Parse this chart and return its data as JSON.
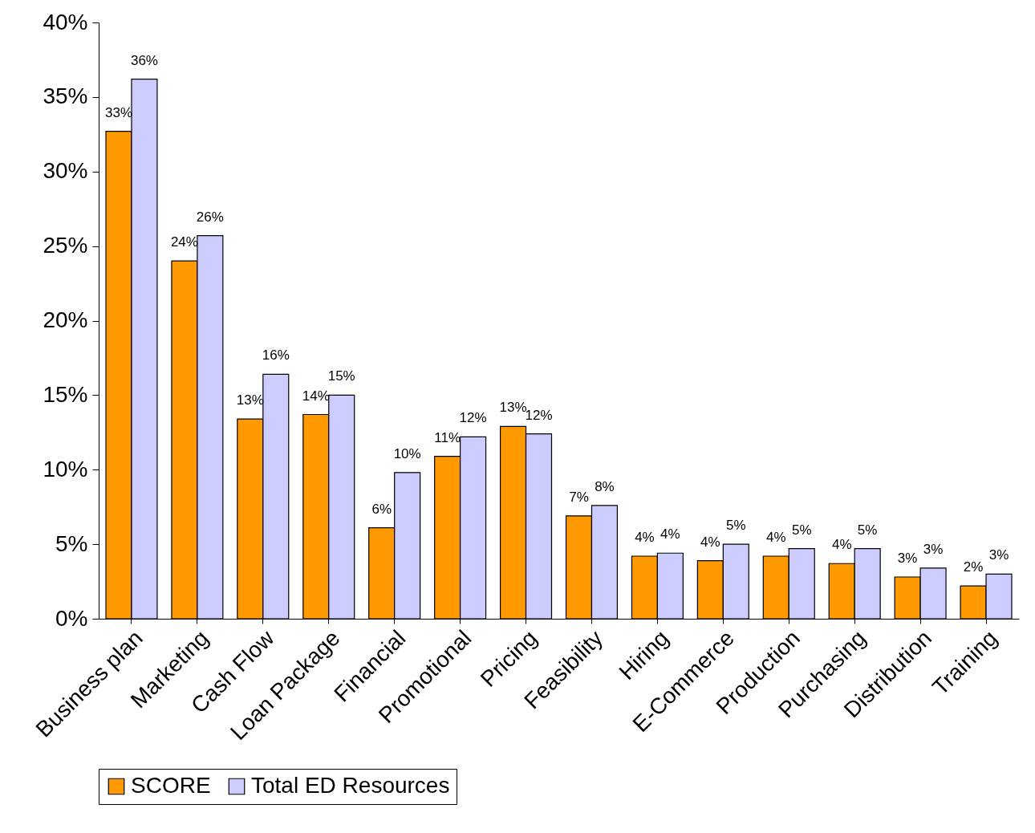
{
  "chart_data": {
    "type": "bar",
    "categories": [
      "Business plan",
      "Marketing",
      "Cash Flow",
      "Loan Package",
      "Financial",
      "Promotional",
      "Pricing",
      "Feasibility",
      "Hiring",
      "E-Commerce",
      "Production",
      "Purchasing",
      "Distribution",
      "Training"
    ],
    "series": [
      {
        "name": "SCORE",
        "color": "#ff9900",
        "values": [
          32.7,
          24.0,
          13.4,
          13.7,
          6.1,
          10.9,
          12.9,
          6.9,
          4.2,
          3.9,
          4.2,
          3.7,
          2.8,
          2.2
        ],
        "value_labels": [
          "33%",
          "24%",
          "13%",
          "14%",
          "6%",
          "11%",
          "13%",
          "7%",
          "4%",
          "4%",
          "4%",
          "4%",
          "3%",
          "2%"
        ]
      },
      {
        "name": "Total ED Resources",
        "color": "#ccccff",
        "values": [
          36.2,
          25.7,
          16.4,
          15.0,
          9.8,
          12.2,
          12.4,
          7.6,
          4.4,
          5.0,
          4.7,
          4.7,
          3.4,
          3.0
        ],
        "value_labels": [
          "36%",
          "26%",
          "16%",
          "15%",
          "10%",
          "12%",
          "12%",
          "8%",
          "4%",
          "5%",
          "5%",
          "5%",
          "3%",
          "3%"
        ]
      }
    ],
    "ylim": [
      0,
      40
    ],
    "yticks": [
      {
        "value": 0,
        "label": "0%"
      },
      {
        "value": 5,
        "label": "5%"
      },
      {
        "value": 10,
        "label": "10%"
      },
      {
        "value": 15,
        "label": "15%"
      },
      {
        "value": 20,
        "label": "20%"
      },
      {
        "value": 25,
        "label": "25%"
      },
      {
        "value": 30,
        "label": "30%"
      },
      {
        "value": 35,
        "label": "35%"
      },
      {
        "value": 40,
        "label": "40%"
      }
    ],
    "grid": false,
    "legend": "bottom"
  }
}
